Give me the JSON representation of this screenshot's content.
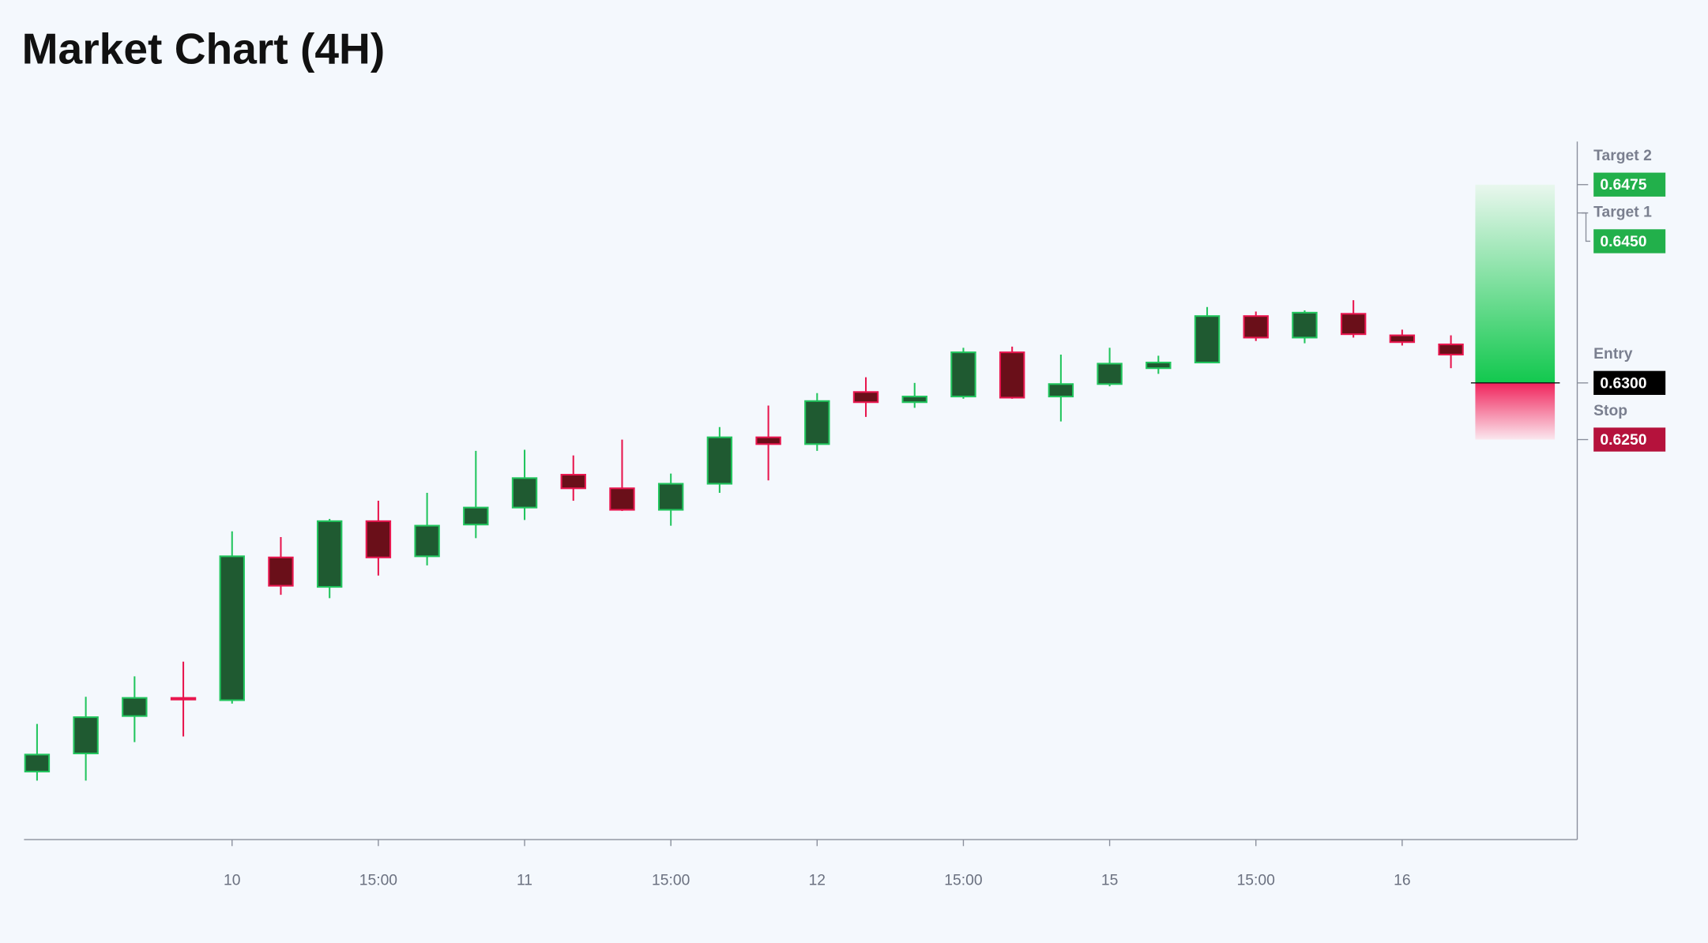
{
  "chart_data": {
    "type": "candlestick",
    "title": "Market Chart (4H)",
    "categories": [
      null,
      null,
      null,
      null,
      "10",
      null,
      null,
      "15:00",
      null,
      null,
      "11",
      null,
      null,
      "15:00",
      null,
      null,
      "12",
      null,
      null,
      "15:00",
      null,
      null,
      "15",
      null,
      null,
      "15:00",
      null,
      null,
      "16",
      null
    ],
    "open": [
      0.5957,
      0.5973,
      0.6006,
      0.6022,
      0.602,
      0.6146,
      0.612,
      0.6178,
      0.6147,
      0.6175,
      0.619,
      0.6219,
      0.6207,
      0.6188,
      0.6211,
      0.6252,
      0.6246,
      0.6292,
      0.6283,
      0.6288,
      0.6327,
      0.6288,
      0.6299,
      0.6313,
      0.6318,
      0.6359,
      0.634,
      0.6361,
      0.6342,
      0.6334
    ],
    "high": [
      0.5999,
      0.6023,
      0.6041,
      0.6054,
      0.6169,
      0.6164,
      0.618,
      0.6196,
      0.6203,
      0.624,
      0.6241,
      0.6236,
      0.625,
      0.622,
      0.6261,
      0.628,
      0.6291,
      0.6305,
      0.63,
      0.6331,
      0.6332,
      0.6325,
      0.6331,
      0.6324,
      0.6367,
      0.6363,
      0.6364,
      0.6373,
      0.6347,
      0.6342
    ],
    "low": [
      0.5949,
      0.5949,
      0.5983,
      0.5988,
      0.6017,
      0.6113,
      0.611,
      0.613,
      0.6139,
      0.6163,
      0.6179,
      0.6196,
      0.6187,
      0.6174,
      0.6203,
      0.6214,
      0.624,
      0.627,
      0.6278,
      0.6286,
      0.6286,
      0.6266,
      0.6297,
      0.6308,
      0.6318,
      0.6337,
      0.6335,
      0.634,
      0.6333,
      0.6313
    ],
    "close": [
      0.5972,
      0.6005,
      0.6022,
      0.6021,
      0.6147,
      0.6121,
      0.6178,
      0.6146,
      0.6174,
      0.619,
      0.6216,
      0.6207,
      0.6188,
      0.6211,
      0.6252,
      0.6246,
      0.6284,
      0.6283,
      0.6288,
      0.6327,
      0.6287,
      0.6299,
      0.6317,
      0.6318,
      0.6359,
      0.634,
      0.6362,
      0.6343,
      0.6336,
      0.6325
    ],
    "up_color": "#22c55e",
    "down_color": "#e8174f",
    "ylim": [
      0.5897,
      0.6513
    ],
    "levels": [
      {
        "name": "Target 2",
        "value": 0.6475,
        "label": "0.6475",
        "color": "#22b04b"
      },
      {
        "name": "Target 1",
        "value": 0.645,
        "label": "0.6450",
        "color": "#22b04b"
      },
      {
        "name": "Entry",
        "value": 0.63,
        "label": "0.6300",
        "color": "#000000"
      },
      {
        "name": "Stop",
        "value": 0.625,
        "label": "0.6250",
        "color": "#b5123c"
      }
    ]
  }
}
